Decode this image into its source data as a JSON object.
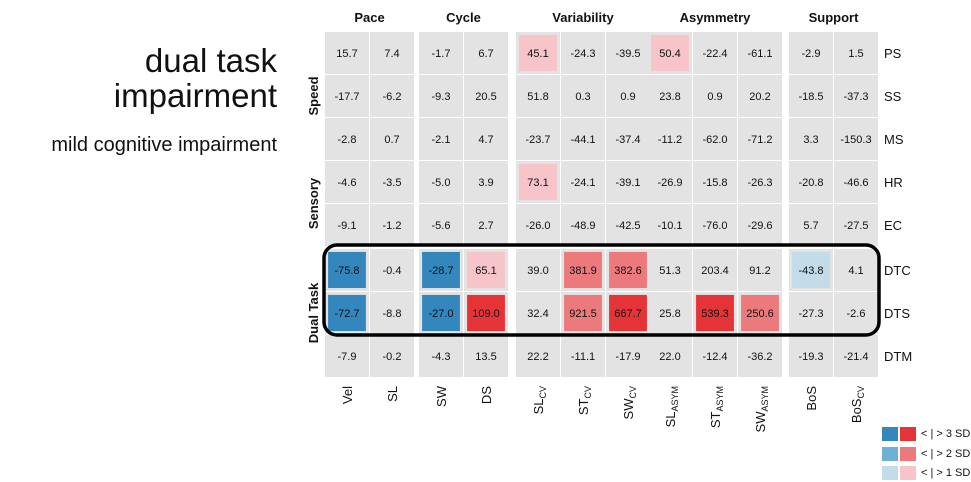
{
  "title": {
    "line1": "dual task",
    "line2": "impairment"
  },
  "subtitle": "mild cognitive impairment",
  "chart_data": {
    "type": "heatmap",
    "column_groups": [
      {
        "name": "Pace",
        "columns": [
          0,
          1
        ]
      },
      {
        "name": "Cycle",
        "columns": [
          2,
          3
        ]
      },
      {
        "name": "Variability",
        "columns": [
          4,
          5,
          6
        ]
      },
      {
        "name": "Asymmetry",
        "columns": [
          7,
          8,
          9
        ]
      },
      {
        "name": "Support",
        "columns": [
          10,
          11
        ]
      }
    ],
    "columns": [
      {
        "base": "Vel",
        "sub": ""
      },
      {
        "base": "SL",
        "sub": ""
      },
      {
        "base": "SW",
        "sub": ""
      },
      {
        "base": "DS",
        "sub": ""
      },
      {
        "base": "SL",
        "sub": "CV"
      },
      {
        "base": "ST",
        "sub": "CV"
      },
      {
        "base": "SW",
        "sub": "CV"
      },
      {
        "base": "SL",
        "sub": "ASYM"
      },
      {
        "base": "ST",
        "sub": "ASYM"
      },
      {
        "base": "SW",
        "sub": "ASYM"
      },
      {
        "base": "BoS",
        "sub": ""
      },
      {
        "base": "BoS",
        "sub": "CV"
      }
    ],
    "row_groups": [
      {
        "name": "Speed",
        "rows": [
          0,
          1,
          2
        ]
      },
      {
        "name": "Sensory",
        "rows": [
          3,
          4
        ]
      },
      {
        "name": "Dual Task",
        "rows": [
          5,
          6,
          7
        ],
        "highlighted_rows": [
          5,
          6
        ]
      }
    ],
    "rows": [
      "PS",
      "SS",
      "MS",
      "HR",
      "EC",
      "DTC",
      "DTS",
      "DTM"
    ],
    "values": [
      [
        15.7,
        7.4,
        -1.7,
        6.7,
        45.1,
        -24.3,
        -39.5,
        50.4,
        -22.4,
        -61.1,
        -2.9,
        1.5
      ],
      [
        -17.7,
        -6.2,
        -9.3,
        20.5,
        51.8,
        0.3,
        0.9,
        23.8,
        0.9,
        20.2,
        -18.5,
        -37.3
      ],
      [
        -2.8,
        0.7,
        -2.1,
        4.7,
        -23.7,
        -44.1,
        -37.4,
        -11.2,
        -62.0,
        -71.2,
        3.3,
        -150.3
      ],
      [
        -4.6,
        -3.5,
        -5.0,
        3.9,
        73.1,
        -24.1,
        -39.1,
        -26.9,
        -15.8,
        -26.3,
        -20.8,
        -46.6
      ],
      [
        -9.1,
        -1.2,
        -5.6,
        2.7,
        -26.0,
        -48.9,
        -42.5,
        -10.1,
        -76.0,
        -29.6,
        5.7,
        -27.5
      ],
      [
        -75.8,
        -0.4,
        -28.7,
        65.1,
        39.0,
        381.9,
        382.6,
        51.3,
        203.4,
        91.2,
        -43.8,
        4.1
      ],
      [
        -72.7,
        -8.8,
        -27.0,
        109.0,
        32.4,
        921.5,
        667.7,
        25.8,
        539.3,
        250.6,
        -27.3,
        -2.6
      ],
      [
        -7.9,
        -0.2,
        -4.3,
        13.5,
        22.2,
        -11.1,
        -17.9,
        22.0,
        -12.4,
        -36.2,
        -19.3,
        -21.4
      ]
    ],
    "significance": [
      [
        0,
        0,
        0,
        0,
        1,
        0,
        0,
        1,
        0,
        0,
        0,
        0
      ],
      [
        0,
        0,
        0,
        0,
        0,
        0,
        0,
        0,
        0,
        0,
        0,
        0
      ],
      [
        0,
        0,
        0,
        0,
        0,
        0,
        0,
        0,
        0,
        0,
        0,
        0
      ],
      [
        0,
        0,
        0,
        0,
        1,
        0,
        0,
        0,
        0,
        0,
        0,
        0
      ],
      [
        0,
        0,
        0,
        0,
        0,
        0,
        0,
        0,
        0,
        0,
        0,
        0
      ],
      [
        -3,
        0,
        -3,
        1,
        0,
        2,
        2,
        0,
        0,
        0,
        -1,
        0
      ],
      [
        -3,
        0,
        -3,
        3,
        0,
        2,
        3,
        0,
        3,
        2,
        0,
        0
      ],
      [
        0,
        0,
        0,
        0,
        0,
        0,
        0,
        0,
        0,
        0,
        0,
        0
      ]
    ],
    "colors": {
      "neutral": "#e3e3e3",
      "neg1": "#c3dcea",
      "neg2": "#6fb0d6",
      "neg3": "#3387bd",
      "pos1": "#f7c4c9",
      "pos2": "#ec7a7c",
      "pos3": "#e43438"
    },
    "legend": {
      "position": "bottom-right",
      "items": [
        {
          "label": "< | > 3 SD",
          "neg": "neg3",
          "pos": "pos3"
        },
        {
          "label": "< | > 2 SD",
          "neg": "neg2",
          "pos": "pos2"
        },
        {
          "label": "< | > 1 SD",
          "neg": "neg1",
          "pos": "pos1"
        }
      ]
    }
  }
}
